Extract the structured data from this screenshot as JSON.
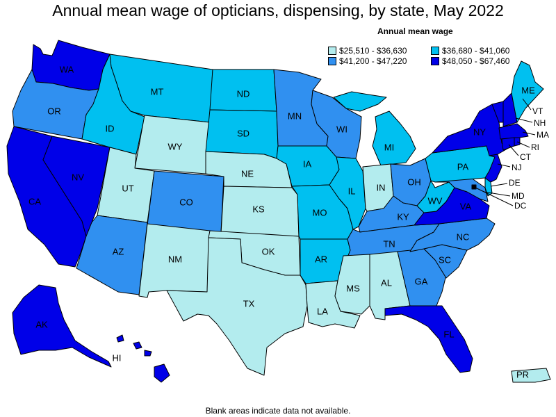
{
  "title": "Annual mean wage of opticians, dispensing, by state, May 2022",
  "legend": {
    "title": "Annual mean wage",
    "items": [
      {
        "label": "$25,510 - $36,630",
        "color": "#b3ecee"
      },
      {
        "label": "$36,680 - $41,060",
        "color": "#00c0f0"
      },
      {
        "label": "$41,200 - $47,220",
        "color": "#3090f0"
      },
      {
        "label": "$48,050 - $67,460",
        "color": "#0000e8"
      }
    ]
  },
  "footnote": "Blank areas indicate data not available.",
  "states": {
    "WA": "$48,050 - $67,460",
    "OR": "$41,200 - $47,220",
    "CA": "$48,050 - $67,460",
    "NV": "$48,050 - $67,460",
    "ID": "$36,680 - $41,060",
    "MT": "$36,680 - $41,060",
    "WY": "$25,510 - $36,630",
    "UT": "$25,510 - $36,630",
    "AZ": "$41,200 - $47,220",
    "CO": "$41,200 - $47,220",
    "NM": "$25,510 - $36,630",
    "ND": "$36,680 - $41,060",
    "SD": "$36,680 - $41,060",
    "NE": "$25,510 - $36,630",
    "KS": "$25,510 - $36,630",
    "OK": "$25,510 - $36,630",
    "TX": "$25,510 - $36,630",
    "MN": "$41,200 - $47,220",
    "IA": "$36,680 - $41,060",
    "MO": "$36,680 - $41,060",
    "AR": "$36,680 - $41,060",
    "LA": "$25,510 - $36,630",
    "WI": "$41,200 - $47,220",
    "IL": "$36,680 - $41,060",
    "MI": "$36,680 - $41,060",
    "IN": "$25,510 - $36,630",
    "OH": "$41,200 - $47,220",
    "KY": "$41,200 - $47,220",
    "TN": "$41,200 - $47,220",
    "MS": "$25,510 - $36,630",
    "AL": "$25,510 - $36,630",
    "GA": "$41,200 - $47,220",
    "FL": "$48,050 - $67,460",
    "SC": "$41,200 - $47,220",
    "NC": "$41,200 - $47,220",
    "VA": "$48,050 - $67,460",
    "WV": "$36,680 - $41,060",
    "PA": "$36,680 - $41,060",
    "NY": "$48,050 - $67,460",
    "VT": "$48,050 - $67,460",
    "NH": "$48,050 - $67,460",
    "ME": "$36,680 - $41,060",
    "MA": "$48,050 - $67,460",
    "RI": "$48,050 - $67,460",
    "CT": "$48,050 - $67,460",
    "NJ": "$48,050 - $67,460",
    "DE": "$36,680 - $41,060",
    "MD": "$41,200 - $47,220",
    "DC": "$48,050 - $67,460",
    "AK": "$48,050 - $67,460",
    "HI": "$48,050 - $67,460",
    "PR": "$25,510 - $36,630"
  },
  "labels": {
    "WA": "WA",
    "OR": "OR",
    "CA": "CA",
    "NV": "NV",
    "ID": "ID",
    "MT": "MT",
    "WY": "WY",
    "UT": "UT",
    "AZ": "AZ",
    "CO": "CO",
    "NM": "NM",
    "ND": "ND",
    "SD": "SD",
    "NE": "NE",
    "KS": "KS",
    "OK": "OK",
    "TX": "TX",
    "MN": "MN",
    "IA": "IA",
    "MO": "MO",
    "AR": "AR",
    "LA": "LA",
    "WI": "WI",
    "IL": "IL",
    "MI": "MI",
    "IN": "IN",
    "OH": "OH",
    "KY": "KY",
    "TN": "TN",
    "MS": "MS",
    "AL": "AL",
    "GA": "GA",
    "FL": "FL",
    "SC": "SC",
    "NC": "NC",
    "VA": "VA",
    "WV": "WV",
    "PA": "PA",
    "NY": "NY",
    "VT": "VT",
    "NH": "NH",
    "ME": "ME",
    "MA": "MA",
    "RI": "RI",
    "CT": "CT",
    "NJ": "NJ",
    "DE": "DE",
    "MD": "MD",
    "DC": "DC",
    "AK": "AK",
    "HI": "HI",
    "PR": "PR"
  }
}
